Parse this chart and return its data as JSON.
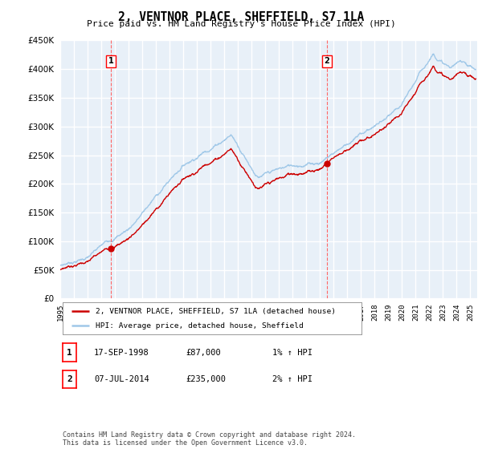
{
  "title": "2, VENTNOR PLACE, SHEFFIELD, S7 1LA",
  "subtitle": "Price paid vs. HM Land Registry's House Price Index (HPI)",
  "ytick_values": [
    0,
    50000,
    100000,
    150000,
    200000,
    250000,
    300000,
    350000,
    400000,
    450000
  ],
  "ylim": [
    0,
    450000
  ],
  "xlim_start": 1995.0,
  "xlim_end": 2025.5,
  "sale1_date": 1998.71,
  "sale1_price": 87000,
  "sale1_label": "1",
  "sale2_date": 2014.51,
  "sale2_price": 235000,
  "sale2_label": "2",
  "hpi_color": "#a0c8e8",
  "price_color": "#cc0000",
  "vline_color": "#ff6666",
  "grid_color": "#ccddee",
  "chart_bg": "#e8f0f8",
  "background_color": "#ffffff",
  "legend_label_price": "2, VENTNOR PLACE, SHEFFIELD, S7 1LA (detached house)",
  "legend_label_hpi": "HPI: Average price, detached house, Sheffield",
  "table_rows": [
    {
      "num": "1",
      "date": "17-SEP-1998",
      "price": "£87,000",
      "hpi": "1% ↑ HPI"
    },
    {
      "num": "2",
      "date": "07-JUL-2014",
      "price": "£235,000",
      "hpi": "2% ↑ HPI"
    }
  ],
  "footnote": "Contains HM Land Registry data © Crown copyright and database right 2024.\nThis data is licensed under the Open Government Licence v3.0.",
  "xtick_years": [
    1995,
    1996,
    1997,
    1998,
    1999,
    2000,
    2001,
    2002,
    2003,
    2004,
    2005,
    2006,
    2007,
    2008,
    2009,
    2010,
    2011,
    2012,
    2013,
    2014,
    2015,
    2016,
    2017,
    2018,
    2019,
    2020,
    2021,
    2022,
    2023,
    2024,
    2025
  ]
}
